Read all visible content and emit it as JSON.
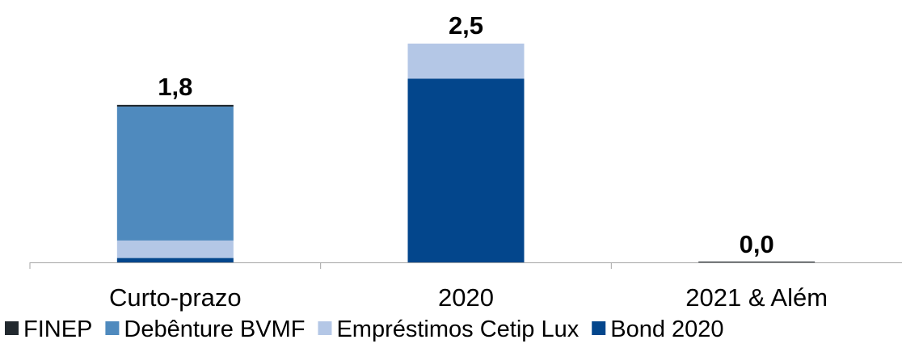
{
  "chart_data": {
    "type": "bar",
    "stacked": true,
    "categories": [
      "Curto-prazo",
      "2020",
      "2021 & Além"
    ],
    "totals": [
      "1,8",
      "2,5",
      "0,0"
    ],
    "series": [
      {
        "name": "Bond 2020",
        "color": "#03468C",
        "values": [
          0.05,
          2.1,
          0.0
        ]
      },
      {
        "name": "Empréstimos Cetip Lux",
        "color": "#B4C7E6",
        "values": [
          0.2,
          0.4,
          0.0
        ]
      },
      {
        "name": "Debênture BVMF",
        "color": "#4F8ABE",
        "values": [
          1.53,
          0.0,
          0.0
        ]
      },
      {
        "name": "FINEP",
        "color": "#22292F",
        "values": [
          0.02,
          0.0,
          0.0
        ]
      }
    ],
    "legend": {
      "placement": "bottom",
      "order": [
        "FINEP",
        "Debênture BVMF",
        "Empréstimos Cetip Lux",
        "Bond 2020"
      ]
    },
    "ylim": [
      0,
      2.5
    ],
    "grid": false,
    "title": "",
    "xlabel": "",
    "ylabel": ""
  }
}
